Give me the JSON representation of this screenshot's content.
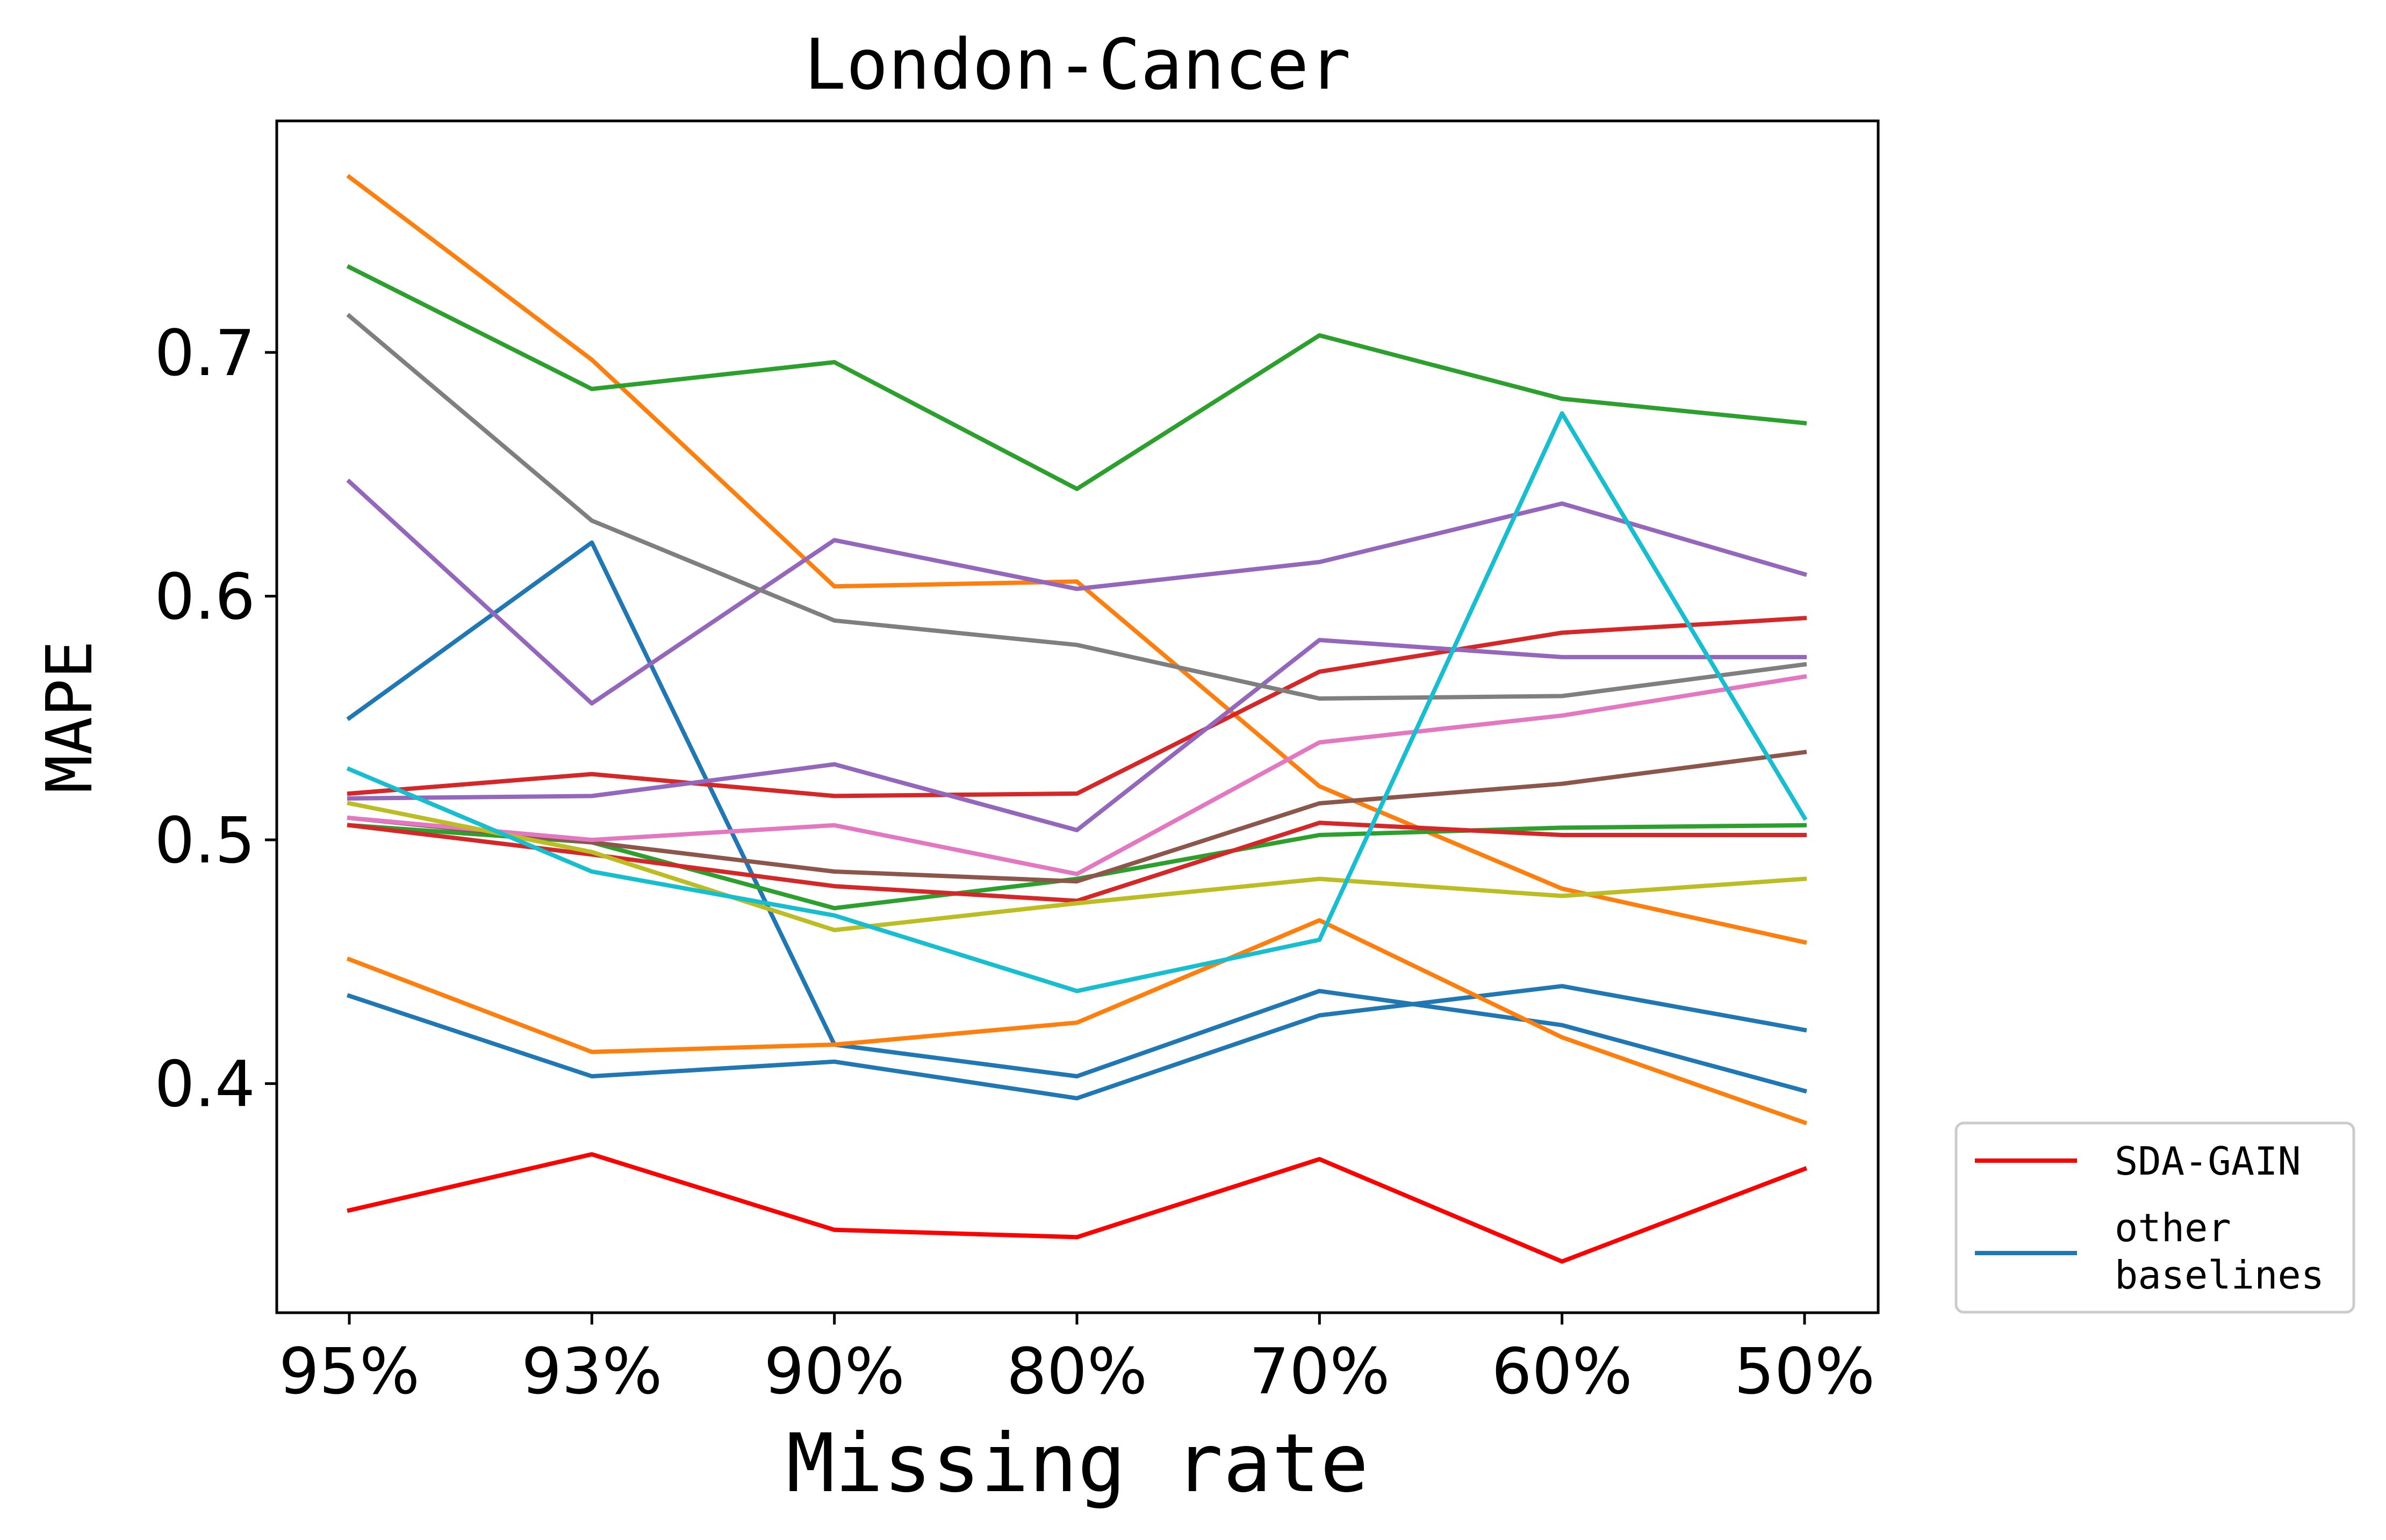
{
  "chart_data": {
    "type": "line",
    "title": "London-Cancer",
    "xlabel": "Missing rate",
    "ylabel": "MAPE",
    "categories": [
      "95%",
      "93%",
      "90%",
      "80%",
      "70%",
      "60%",
      "50%"
    ],
    "ylim": [
      0.306,
      0.795
    ],
    "yticks": [
      0.4,
      0.5,
      0.6,
      0.7
    ],
    "ytick_labels": [
      "0.4",
      "0.5",
      "0.6",
      "0.7"
    ],
    "grid": false,
    "legend": {
      "placement": "lower-right-outside",
      "entries": [
        {
          "label": "SDA-GAIN",
          "color": "#ff0000"
        },
        {
          "label": "other\nbaselines",
          "color": "#1f77b4"
        }
      ]
    },
    "series": [
      {
        "color": "#1f77b4",
        "values": [
          0.55,
          0.622,
          0.416,
          0.403,
          0.438,
          0.424,
          0.397
        ]
      },
      {
        "color": "#1f77b4",
        "values": [
          0.436,
          0.403,
          0.409,
          0.394,
          0.428,
          0.44,
          0.422
        ]
      },
      {
        "color": "#ff7f0e",
        "values": [
          0.772,
          0.697,
          0.604,
          0.606,
          0.522,
          0.48,
          0.458
        ]
      },
      {
        "color": "#ff7f0e",
        "values": [
          0.451,
          0.413,
          0.416,
          0.425,
          0.467,
          0.419,
          0.384
        ]
      },
      {
        "color": "#2ca02c",
        "values": [
          0.735,
          0.685,
          0.696,
          0.644,
          0.707,
          0.681,
          0.671
        ]
      },
      {
        "color": "#2ca02c",
        "values": [
          0.506,
          0.499,
          0.472,
          0.484,
          0.502,
          0.505,
          0.506
        ]
      },
      {
        "color": "#d62728",
        "values": [
          0.519,
          0.527,
          0.518,
          0.519,
          0.569,
          0.585,
          0.591
        ]
      },
      {
        "color": "#d62728",
        "values": [
          0.506,
          0.494,
          0.481,
          0.475,
          0.507,
          0.502,
          0.502
        ]
      },
      {
        "color": "#9467bd",
        "values": [
          0.647,
          0.556,
          0.623,
          0.603,
          0.614,
          0.638,
          0.609
        ]
      },
      {
        "color": "#9467bd",
        "values": [
          0.517,
          0.518,
          0.531,
          0.504,
          0.582,
          0.575,
          0.575
        ]
      },
      {
        "color": "#8c564b",
        "values": [
          0.509,
          0.499,
          0.487,
          0.483,
          0.515,
          0.523,
          0.536
        ]
      },
      {
        "color": "#e377c2",
        "values": [
          0.509,
          0.5,
          0.506,
          0.486,
          0.54,
          0.551,
          0.567
        ]
      },
      {
        "color": "#7f7f7f",
        "values": [
          0.715,
          0.631,
          0.59,
          0.58,
          0.558,
          0.559,
          0.572
        ]
      },
      {
        "color": "#bcbd22",
        "values": [
          0.515,
          0.495,
          0.463,
          0.474,
          0.484,
          0.477,
          0.484
        ]
      },
      {
        "color": "#17becf",
        "values": [
          0.529,
          0.487,
          0.469,
          0.438,
          0.459,
          0.675,
          0.509
        ]
      },
      {
        "name": "SDA-GAIN",
        "color": "#ff0000",
        "values": [
          0.348,
          0.371,
          0.34,
          0.337,
          0.369,
          0.327,
          0.365
        ]
      }
    ]
  }
}
